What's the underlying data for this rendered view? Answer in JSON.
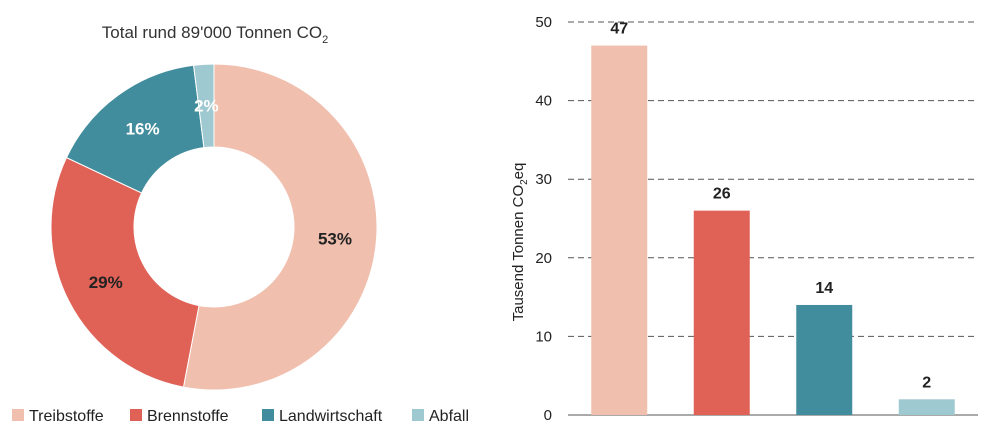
{
  "chart_data": [
    {
      "type": "pie",
      "variant": "donut",
      "title_text": "Total rund 89'000 Tonnen CO",
      "title_subscript": "2",
      "categories": [
        "Treibstoffe",
        "Brennstoffe",
        "Landwirtschaft",
        "Abfall"
      ],
      "values": [
        53,
        29,
        16,
        2
      ],
      "value_labels": [
        "53%",
        "29%",
        "16%",
        "2%"
      ],
      "colors": [
        "#f0bfae",
        "#e06257",
        "#428d9d",
        "#9fc9d0"
      ],
      "legend": {
        "placement": "bottom"
      }
    },
    {
      "type": "bar",
      "categories": [
        "Treibstoffe",
        "Brennstoffe",
        "Landwirtschaft",
        "Abfall"
      ],
      "values": [
        47,
        26,
        14,
        2
      ],
      "value_labels": [
        "47",
        "26",
        "14",
        "2"
      ],
      "colors": [
        "#f0bfae",
        "#e06257",
        "#428d9d",
        "#9fc9d0"
      ],
      "ylabel_parts": {
        "before": "Tausend Tonnen CO",
        "sub": "2",
        "after": "eq"
      },
      "ylim": [
        0,
        50
      ],
      "yticks": [
        0,
        10,
        20,
        30,
        40,
        50
      ],
      "ytick_labels": [
        "0",
        "10",
        "20",
        "30",
        "40",
        "50"
      ],
      "grid": "dashed-horizontal"
    }
  ]
}
